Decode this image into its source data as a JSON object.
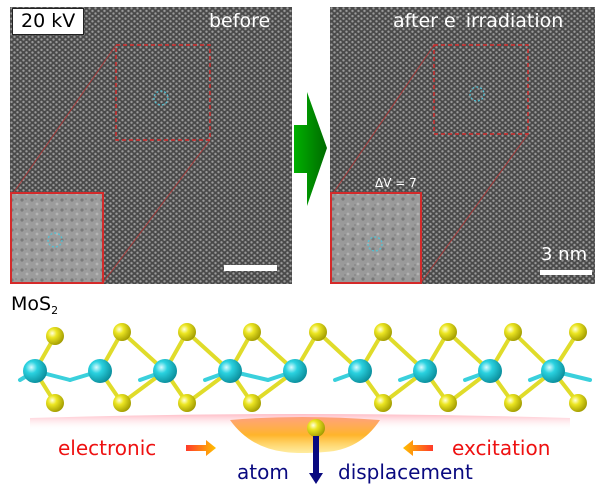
{
  "labels": {
    "voltage": "20 kV",
    "before": "before",
    "after_prefix": "after e",
    "after_sup": "-",
    "after_suffix": " irradiation",
    "delta_v": "ΔV = 7",
    "scale_bar": "3 nm",
    "material_prefix": "MoS",
    "material_sub": "2",
    "electronic": "electronic",
    "excitation": "excitation",
    "atom": "atom",
    "displacement": "displacement"
  },
  "colors": {
    "mo_atom": "#1fc8d6",
    "s_atom": "#e8e31e",
    "bond_mo": "#3ad0dc",
    "bond_s": "#e0dc2a",
    "arrow_green": "#008a00",
    "arrow_orange": "#f5a000",
    "arrow_blue": "#0a0a80",
    "text_red": "#ee1111",
    "roi_red": "#d42a2a",
    "vacancy_cyan": "#4fc3d6"
  },
  "icons": {
    "transition": "right-arrow-icon",
    "displacement": "down-arrow-icon",
    "excitation": "inward-arrow-icon"
  }
}
